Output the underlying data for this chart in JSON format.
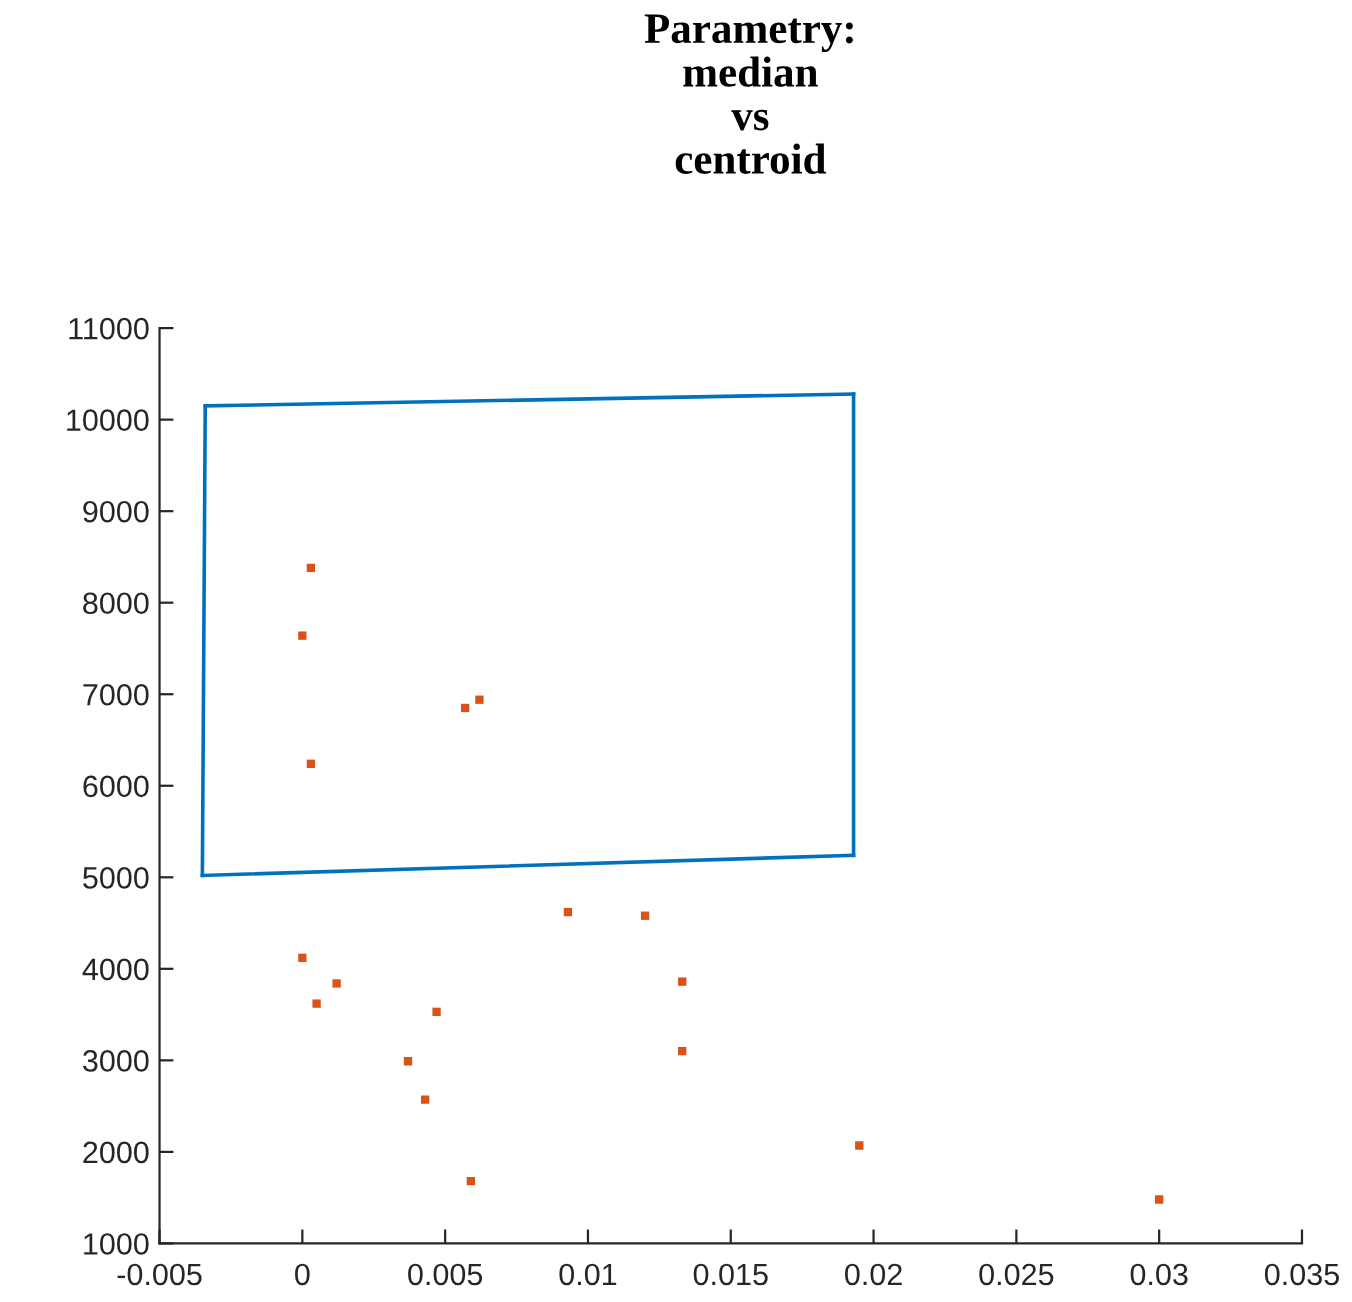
{
  "chart_data": {
    "type": "scatter",
    "title": "Parametry:\nmedian\nvs\ncentroid",
    "series": [
      {
        "type": "line",
        "color": "#0072bd",
        "marker": "none",
        "line_style": "solid",
        "x": [
          -0.0034,
          0.0193
        ],
        "values": [
          10150,
          10280
        ]
      },
      {
        "type": "line",
        "color": "#0072bd",
        "marker": "none",
        "line_style": "solid",
        "x": [
          0.0193,
          0.0193
        ],
        "values": [
          5240,
          10280
        ]
      },
      {
        "type": "line",
        "color": "#0072bd",
        "marker": "none",
        "line_style": "solid",
        "x": [
          -0.0035,
          0.0193
        ],
        "values": [
          5020,
          5240
        ]
      },
      {
        "type": "line",
        "color": "#0072bd",
        "marker": "none",
        "line_style": "solid",
        "x": [
          -0.0035,
          -0.0034
        ],
        "values": [
          5020,
          10150
        ]
      },
      {
        "color": "#d95319",
        "marker": "square",
        "x": [
          0.0003,
          0.0,
          0.0062,
          0.0057,
          0.0003,
          0.0093,
          0.012,
          0.0,
          0.0012,
          0.0005,
          0.0133,
          0.0047,
          0.0037,
          0.0043,
          0.0133,
          0.0059,
          0.0195,
          0.03
        ],
        "values": [
          8380,
          7640,
          6940,
          6850,
          6240,
          4620,
          4580,
          4120,
          3840,
          3620,
          3860,
          3530,
          2990,
          2570,
          3100,
          1680,
          2070,
          1480
        ]
      }
    ],
    "xlim": [
      -0.005,
      0.035
    ],
    "xticks": [
      -0.005,
      0,
      0.005,
      0.01,
      0.015,
      0.02,
      0.025,
      0.03,
      0.035
    ],
    "ylim": [
      1000,
      11000
    ],
    "yticks": [
      1000,
      2000,
      3000,
      4000,
      5000,
      6000,
      7000,
      8000,
      9000,
      10000,
      11000
    ],
    "grid": false,
    "legend": false
  }
}
